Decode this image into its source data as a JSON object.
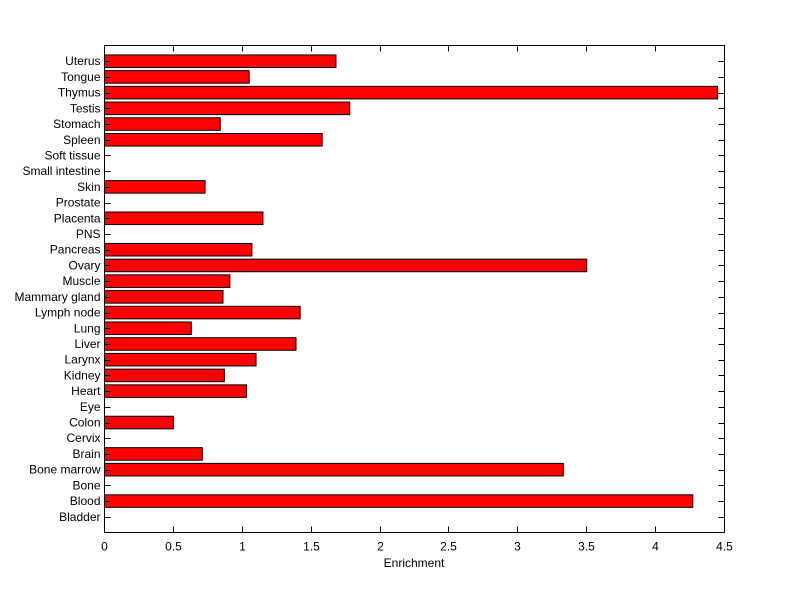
{
  "chart_data": {
    "type": "bar",
    "orientation": "horizontal",
    "title": "",
    "xlabel": "Enrichment",
    "ylabel": "",
    "xlim": [
      0,
      4.5
    ],
    "xticks": [
      0,
      0.5,
      1,
      1.5,
      2,
      2.5,
      3,
      3.5,
      4,
      4.5
    ],
    "xtick_labels": [
      "0",
      "0.5",
      "1",
      "1.5",
      "2",
      "2.5",
      "3",
      "3.5",
      "4",
      "4.5"
    ],
    "grid": false,
    "bar_color": "#ff0000",
    "categories": [
      "Bladder",
      "Blood",
      "Bone",
      "Bone marrow",
      "Brain",
      "Cervix",
      "Colon",
      "Eye",
      "Heart",
      "Kidney",
      "Larynx",
      "Liver",
      "Lung",
      "Lymph node",
      "Mammary gland",
      "Muscle",
      "Ovary",
      "Pancreas",
      "PNS",
      "Placenta",
      "Prostate",
      "Skin",
      "Small intestine",
      "Soft tissue",
      "Spleen",
      "Stomach",
      "Testis",
      "Thymus",
      "Tongue",
      "Uterus"
    ],
    "values": [
      0,
      4.27,
      0,
      3.33,
      0.71,
      0,
      0.5,
      0,
      1.03,
      0.87,
      1.1,
      1.39,
      0.63,
      1.42,
      0.86,
      0.91,
      3.5,
      1.07,
      0,
      1.15,
      0,
      0.73,
      0,
      0,
      1.58,
      0.84,
      1.78,
      4.45,
      1.05,
      1.68
    ]
  }
}
